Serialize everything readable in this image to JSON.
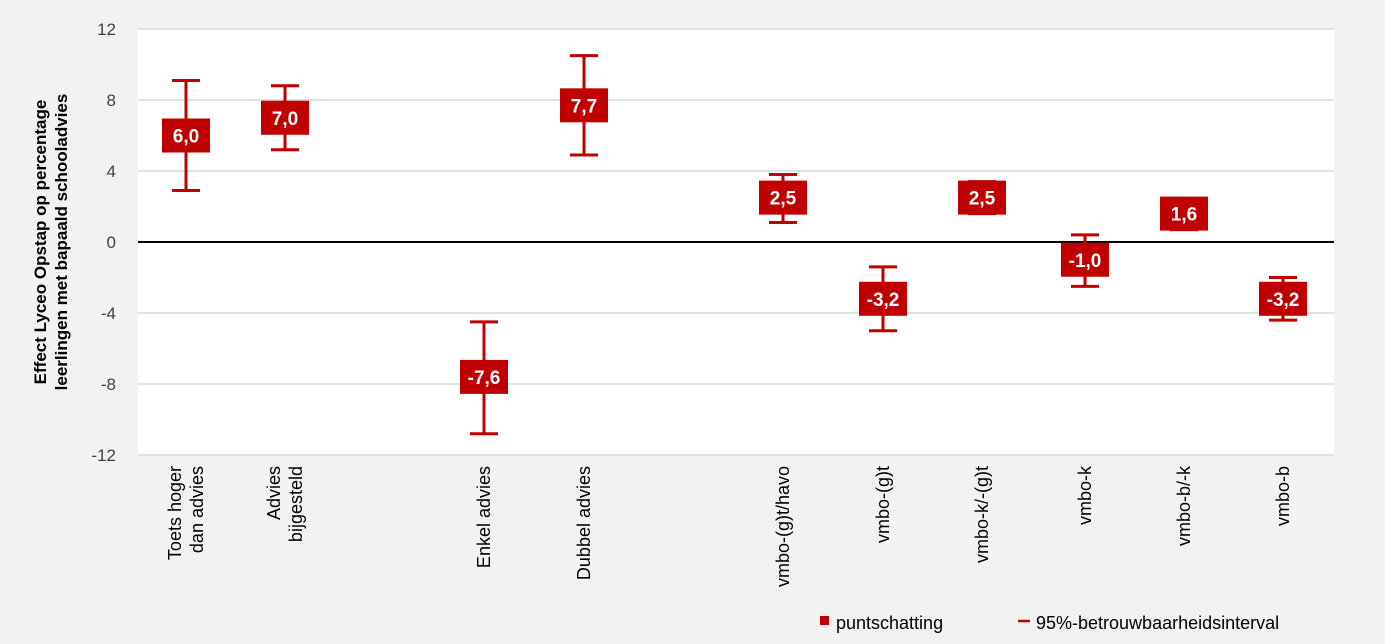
{
  "chart_data": {
    "type": "errorbar",
    "ylabel_line1": "Effect Lyceo Opstap op percentage",
    "ylabel_line2": "leerlingen met bapaald schooladvies",
    "ylim": [
      -12,
      12
    ],
    "yticks": [
      12,
      8,
      4,
      0,
      -4,
      -8,
      -12
    ],
    "ytick_labels": [
      "12",
      "8",
      "4",
      "0",
      "-4",
      "-8",
      "-12"
    ],
    "grid": true,
    "legend_position": "bottom-right",
    "legend": {
      "point": "puntschatting",
      "interval": "95%-betrouwbaarheidsinterval"
    },
    "colors": {
      "mark": "#c00000",
      "grid": "#d9d9d9",
      "axis": "#000000",
      "background": "#ffffff"
    },
    "categories": [
      {
        "label_lines": [
          "Toets hoger",
          "dan advies"
        ],
        "value": 6.0,
        "lower": 2.9,
        "upper": 9.1,
        "value_label": "6,0"
      },
      {
        "label_lines": [
          "Advies",
          "bijgesteld"
        ],
        "value": 7.0,
        "lower": 5.2,
        "upper": 8.8,
        "value_label": "7,0"
      },
      {
        "label_lines": [
          "Enkel advies"
        ],
        "value": -7.6,
        "lower": -10.8,
        "upper": -4.5,
        "value_label": "-7,6"
      },
      {
        "label_lines": [
          "Dubbel advies"
        ],
        "value": 7.7,
        "lower": 4.9,
        "upper": 10.5,
        "value_label": "7,7"
      },
      {
        "label_lines": [
          "vmbo-(g)t/havo"
        ],
        "value": 2.5,
        "lower": 1.1,
        "upper": 3.8,
        "value_label": "2,5"
      },
      {
        "label_lines": [
          "vmbo-(g)t"
        ],
        "value": -3.2,
        "lower": -5.0,
        "upper": -1.4,
        "value_label": "-3,2"
      },
      {
        "label_lines": [
          "vmbo-k/-(g)t"
        ],
        "value": 2.5,
        "lower": 1.6,
        "upper": 3.4,
        "value_label": "2,5"
      },
      {
        "label_lines": [
          "vmbo-k"
        ],
        "value": -1.0,
        "lower": -2.5,
        "upper": 0.4,
        "value_label": "-1,0"
      },
      {
        "label_lines": [
          "vmbo-b/-k"
        ],
        "value": 1.6,
        "lower": 0.7,
        "upper": 2.4,
        "value_label": "1,6"
      },
      {
        "label_lines": [
          "vmbo-b"
        ],
        "value": -3.2,
        "lower": -4.4,
        "upper": -2.0,
        "value_label": "-3,2"
      }
    ]
  }
}
